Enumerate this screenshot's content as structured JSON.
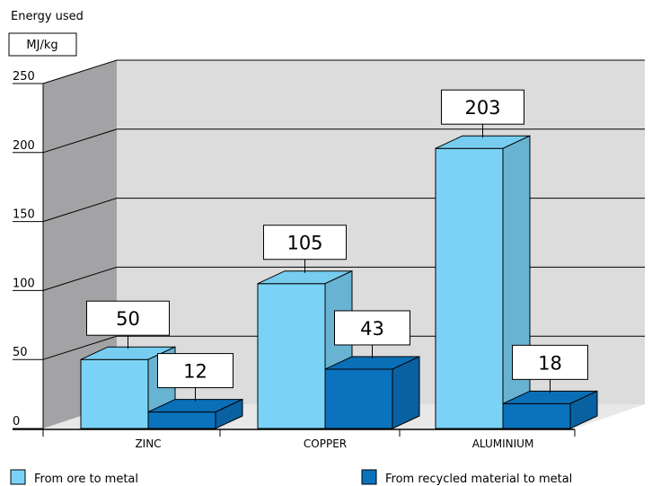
{
  "chart_data": {
    "type": "bar",
    "title": "Energy used",
    "ylabel": "MJ/kg",
    "xlabel": "",
    "ylim": [
      0,
      250
    ],
    "yticks": [
      0,
      50,
      100,
      150,
      200,
      250
    ],
    "categories": [
      "ZINC",
      "COPPER",
      "ALUMINIUM"
    ],
    "series": [
      {
        "name": "From ore to metal",
        "color": "#7ad3f7",
        "values": [
          50,
          105,
          203
        ]
      },
      {
        "name": "From recycled material to metal",
        "color": "#0b72bd",
        "values": [
          12,
          43,
          18
        ]
      }
    ],
    "grid": true,
    "legend": "bottom",
    "style": "3d"
  }
}
